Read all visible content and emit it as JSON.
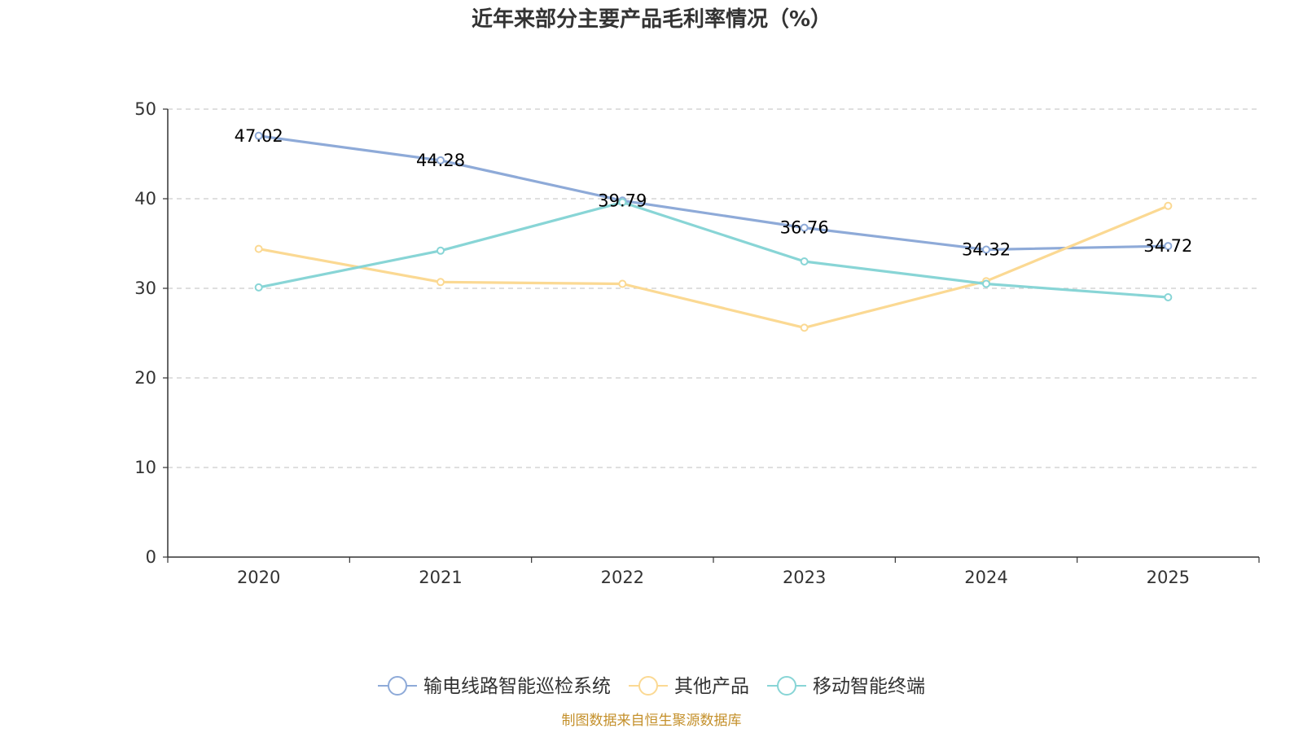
{
  "chart_data": {
    "type": "line",
    "title": "近年来部分主要产品毛利率情况（%）",
    "categories": [
      "2020",
      "2021",
      "2022",
      "2023",
      "2024",
      "2025"
    ],
    "ylim": [
      0,
      50
    ],
    "yticks": [
      "0",
      "10",
      "20",
      "30",
      "40",
      "50"
    ],
    "grid": true,
    "legend_position": "bottom",
    "series": [
      {
        "name": "输电线路智能巡检系统",
        "color": "#8eaad8",
        "values": [
          47.02,
          44.28,
          39.79,
          36.76,
          34.32,
          34.72
        ],
        "labels": [
          "47.02",
          "44.28",
          "39.79",
          "36.76",
          "34.32",
          "34.72"
        ],
        "show_labels": true
      },
      {
        "name": "其他产品",
        "color": "#fbd993",
        "values": [
          34.4,
          30.7,
          30.5,
          25.6,
          30.8,
          39.2
        ],
        "show_labels": false
      },
      {
        "name": "移动智能终端",
        "color": "#88d5d6",
        "values": [
          30.1,
          34.2,
          39.6,
          33.0,
          30.5,
          29.0
        ],
        "show_labels": false
      }
    ]
  },
  "footer": {
    "source": "制图数据来自恒生聚源数据库",
    "source_color": "#c4902b"
  }
}
